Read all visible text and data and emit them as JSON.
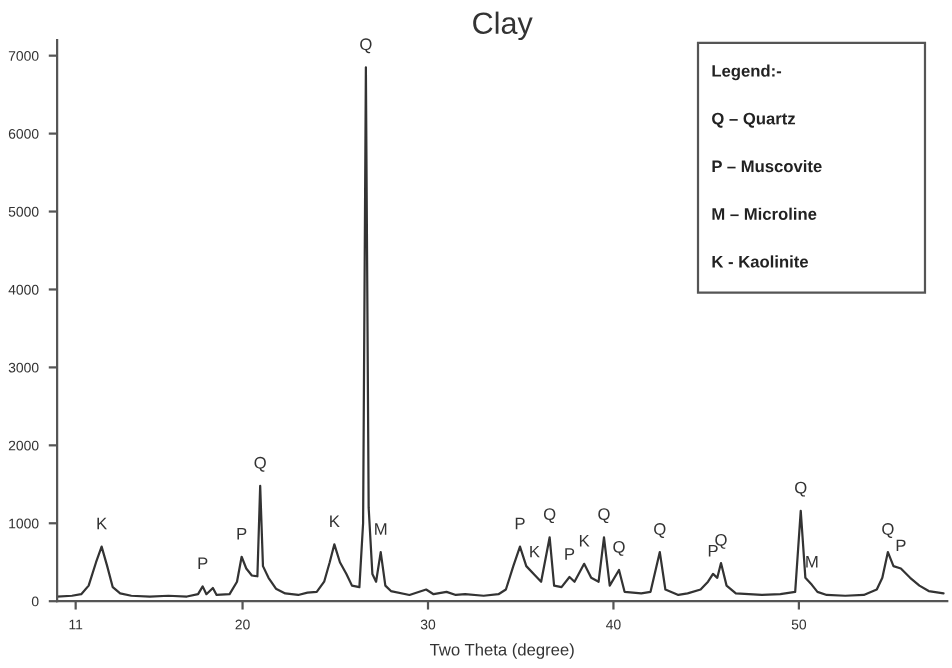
{
  "chart_data": {
    "type": "line",
    "title": "Clay",
    "xlabel": "Two Theta (degree)",
    "xlim": [
      10,
      58
    ],
    "xticks": [
      11,
      20,
      30,
      40,
      50
    ],
    "ylim": [
      0,
      7200
    ],
    "yticks": [
      0,
      1000,
      2000,
      3000,
      4000,
      5000,
      6000,
      7000
    ],
    "grid": false,
    "legend": false,
    "marker": "none",
    "line_style": "solid",
    "series": [
      {
        "color": "#333333",
        "x": [
          10.0,
          10.8,
          11.3,
          11.7,
          12.1,
          12.4,
          12.7,
          13.0,
          13.4,
          14.0,
          15.0,
          16.0,
          17.0,
          17.6,
          17.85,
          18.05,
          18.4,
          18.6,
          19.3,
          19.7,
          19.95,
          20.2,
          20.5,
          20.8,
          20.95,
          21.1,
          21.4,
          21.8,
          22.3,
          23.0,
          23.5,
          24.0,
          24.4,
          24.7,
          24.95,
          25.25,
          25.6,
          25.9,
          26.3,
          26.5,
          26.65,
          26.8,
          27.0,
          27.2,
          27.45,
          27.7,
          28.0,
          29.0,
          29.9,
          30.3,
          31.0,
          31.5,
          32.0,
          33.0,
          33.8,
          34.2,
          34.6,
          34.96,
          35.3,
          35.74,
          36.1,
          36.56,
          36.8,
          37.2,
          37.63,
          37.9,
          38.42,
          38.8,
          39.2,
          39.49,
          39.8,
          40.3,
          40.6,
          41.5,
          42.0,
          42.5,
          42.8,
          43.5,
          44.0,
          44.7,
          45.1,
          45.37,
          45.6,
          45.8,
          46.1,
          46.6,
          48.0,
          49.0,
          49.8,
          50.1,
          50.35,
          50.7,
          51.0,
          51.5,
          52.5,
          53.5,
          54.2,
          54.5,
          54.8,
          55.1,
          55.5,
          56.0,
          56.5,
          57.0,
          57.8
        ],
        "values": [
          60,
          70,
          90,
          200,
          500,
          700,
          450,
          180,
          100,
          70,
          60,
          70,
          60,
          90,
          190,
          90,
          170,
          80,
          90,
          250,
          570,
          420,
          330,
          320,
          1480,
          450,
          300,
          160,
          100,
          80,
          110,
          120,
          250,
          500,
          730,
          500,
          350,
          200,
          180,
          1000,
          6850,
          1200,
          350,
          250,
          630,
          200,
          130,
          80,
          150,
          90,
          120,
          80,
          90,
          70,
          90,
          150,
          450,
          700,
          450,
          340,
          250,
          820,
          200,
          180,
          310,
          250,
          480,
          300,
          250,
          820,
          200,
          400,
          120,
          100,
          120,
          630,
          150,
          80,
          100,
          150,
          250,
          350,
          300,
          490,
          200,
          100,
          80,
          90,
          120,
          1160,
          300,
          210,
          120,
          80,
          70,
          80,
          150,
          300,
          630,
          450,
          420,
          300,
          200,
          130,
          100
        ]
      }
    ],
    "annotations": [
      {
        "text": "K",
        "x": 12.4,
        "y": 700
      },
      {
        "text": "P",
        "x": 17.85,
        "y": 190
      },
      {
        "text": "P",
        "x": 19.95,
        "y": 570
      },
      {
        "text": "Q",
        "x": 20.95,
        "y": 1480
      },
      {
        "text": "K",
        "x": 24.95,
        "y": 730
      },
      {
        "text": "Q",
        "x": 26.65,
        "y": 6850
      },
      {
        "text": "M",
        "x": 27.45,
        "y": 630
      },
      {
        "text": "P",
        "x": 34.96,
        "y": 700
      },
      {
        "text": "K",
        "x": 35.74,
        "y": 340
      },
      {
        "text": "Q",
        "x": 36.56,
        "y": 820
      },
      {
        "text": "P",
        "x": 37.63,
        "y": 310
      },
      {
        "text": "K",
        "x": 38.42,
        "y": 480
      },
      {
        "text": "Q",
        "x": 39.49,
        "y": 820
      },
      {
        "text": "Q",
        "x": 40.3,
        "y": 400
      },
      {
        "text": "Q",
        "x": 42.5,
        "y": 630
      },
      {
        "text": "P",
        "x": 45.37,
        "y": 350
      },
      {
        "text": "Q",
        "x": 45.8,
        "y": 490
      },
      {
        "text": "Q",
        "x": 50.1,
        "y": 1160
      },
      {
        "text": "M",
        "x": 50.7,
        "y": 210
      },
      {
        "text": "Q",
        "x": 54.8,
        "y": 630
      },
      {
        "text": "P",
        "x": 55.5,
        "y": 420
      },
      "Legend:-",
      "Q – Quartz",
      "P – Muscovite",
      "M – Microline",
      "K - Kaolinite"
    ]
  }
}
